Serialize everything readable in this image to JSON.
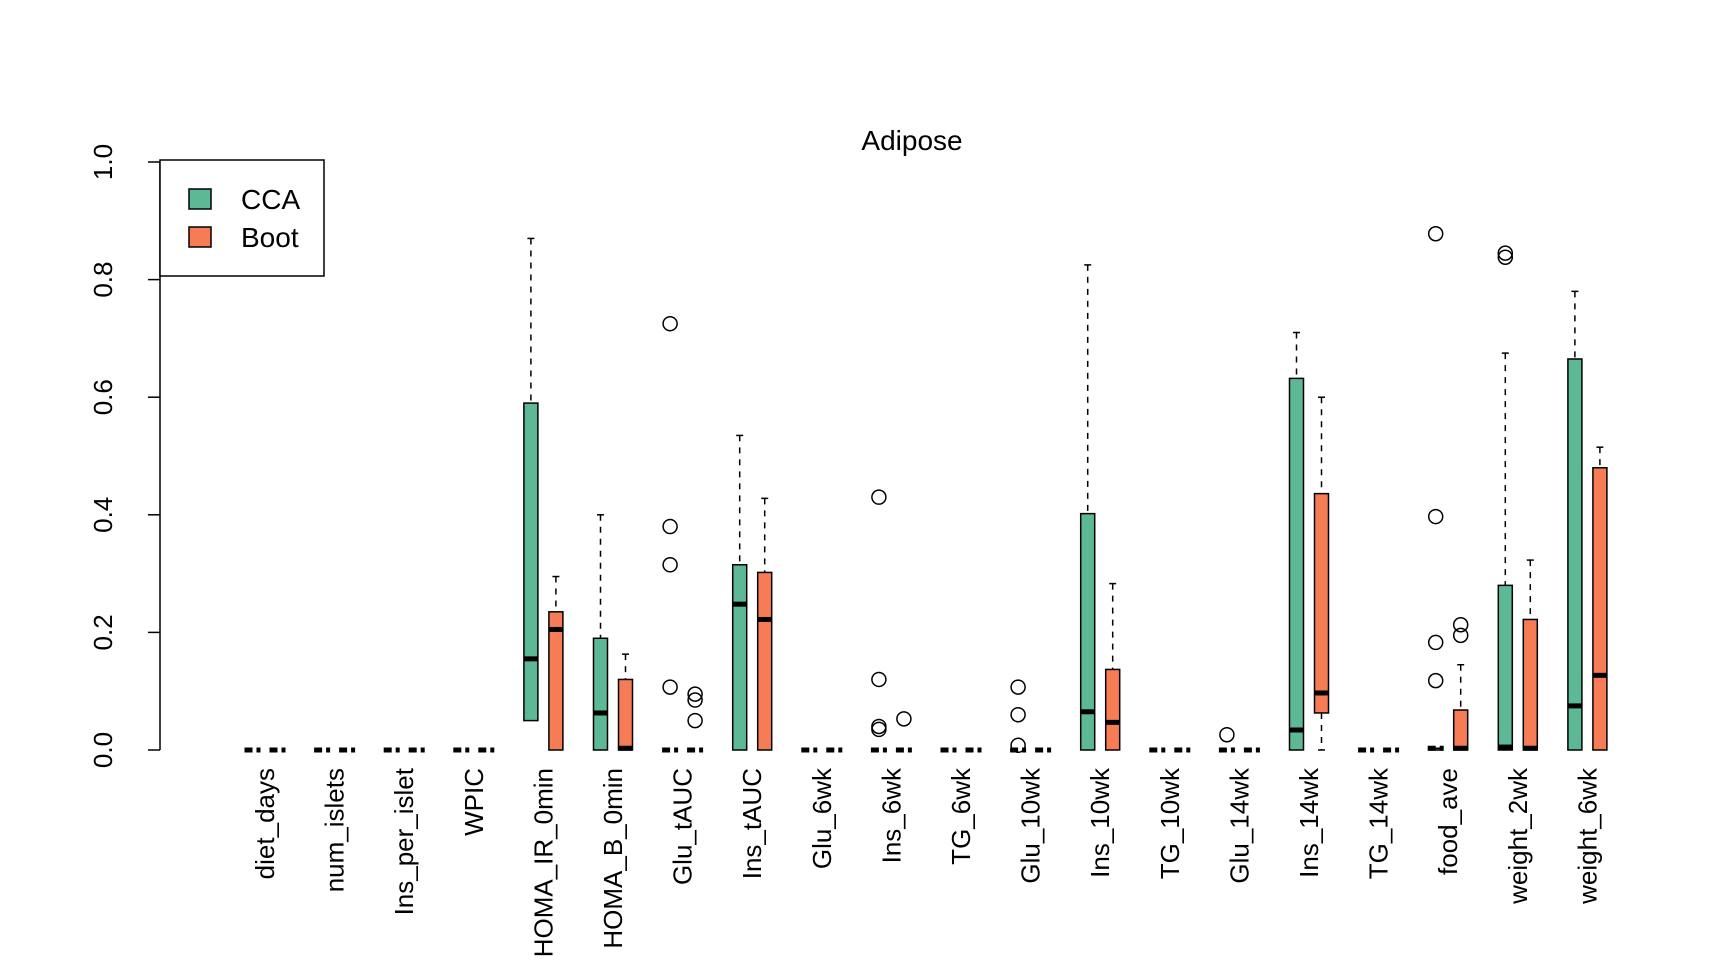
{
  "chart_data": {
    "type": "box",
    "title": "Adipose",
    "xlabel": "",
    "ylabel": "",
    "ylim": [
      0,
      1
    ],
    "yticks": [
      "0.0",
      "0.2",
      "0.4",
      "0.6",
      "0.8",
      "1.0"
    ],
    "legend": {
      "placement": "top-left",
      "entries": [
        {
          "label": "CCA",
          "color": "#5DB995"
        },
        {
          "label": "Boot",
          "color": "#F57C55"
        }
      ]
    },
    "categories": [
      "diet_days",
      "num_islets",
      "Ins_per_islet",
      "WPIC",
      "HOMA_IR_0min",
      "HOMA_B_0min",
      "Glu_tAUC",
      "Ins_tAUC",
      "Glu_6wk",
      "Ins_6wk",
      "TG_6wk",
      "Glu_10wk",
      "Ins_10wk",
      "TG_10wk",
      "Glu_14wk",
      "Ins_14wk",
      "TG_14wk",
      "food_ave",
      "weight_2wk",
      "weight_6wk"
    ],
    "series": [
      {
        "name": "CCA",
        "color": "#5DB995",
        "boxes": [
          {
            "min": 0,
            "q1": 0,
            "median": 0,
            "q3": 0,
            "max": 0,
            "outliers": []
          },
          {
            "min": 0,
            "q1": 0,
            "median": 0,
            "q3": 0,
            "max": 0,
            "outliers": []
          },
          {
            "min": 0,
            "q1": 0,
            "median": 0,
            "q3": 0,
            "max": 0,
            "outliers": []
          },
          {
            "min": 0,
            "q1": 0,
            "median": 0,
            "q3": 0,
            "max": 0,
            "outliers": []
          },
          {
            "min": 0.05,
            "q1": 0.05,
            "median": 0.155,
            "q3": 0.59,
            "max": 0.87,
            "outliers": []
          },
          {
            "min": 0,
            "q1": 0,
            "median": 0.063,
            "q3": 0.19,
            "max": 0.4,
            "outliers": []
          },
          {
            "min": 0,
            "q1": 0,
            "median": 0,
            "q3": 0,
            "max": 0,
            "outliers": [
              0.725,
              0.38,
              0.315,
              0.107
            ]
          },
          {
            "min": 0,
            "q1": 0,
            "median": 0.248,
            "q3": 0.315,
            "max": 0.535,
            "outliers": []
          },
          {
            "min": 0,
            "q1": 0,
            "median": 0,
            "q3": 0,
            "max": 0,
            "outliers": []
          },
          {
            "min": 0,
            "q1": 0,
            "median": 0,
            "q3": 0,
            "max": 0,
            "outliers": [
              0.43,
              0.12,
              0.04,
              0.035
            ]
          },
          {
            "min": 0,
            "q1": 0,
            "median": 0,
            "q3": 0,
            "max": 0,
            "outliers": []
          },
          {
            "min": 0,
            "q1": 0,
            "median": 0,
            "q3": 0,
            "max": 0,
            "outliers": [
              0.107,
              0.06,
              0.008
            ]
          },
          {
            "min": 0,
            "q1": 0,
            "median": 0.065,
            "q3": 0.402,
            "max": 0.825,
            "outliers": []
          },
          {
            "min": 0,
            "q1": 0,
            "median": 0,
            "q3": 0,
            "max": 0,
            "outliers": []
          },
          {
            "min": 0,
            "q1": 0,
            "median": 0,
            "q3": 0,
            "max": 0,
            "outliers": [
              0.026
            ]
          },
          {
            "min": 0,
            "q1": 0,
            "median": 0.034,
            "q3": 0.632,
            "max": 0.71,
            "outliers": []
          },
          {
            "min": 0,
            "q1": 0,
            "median": 0,
            "q3": 0,
            "max": 0,
            "outliers": []
          },
          {
            "min": 0,
            "q1": 0,
            "median": 0.003,
            "q3": 0.003,
            "max": 0.003,
            "outliers": [
              0.878,
              0.397,
              0.183,
              0.118
            ]
          },
          {
            "min": 0,
            "q1": 0,
            "median": 0.005,
            "q3": 0.28,
            "max": 0.675,
            "outliers": [
              0.845,
              0.838
            ]
          },
          {
            "min": 0,
            "q1": 0,
            "median": 0.075,
            "q3": 0.665,
            "max": 0.78,
            "outliers": []
          }
        ]
      },
      {
        "name": "Boot",
        "color": "#F57C55",
        "boxes": [
          {
            "min": 0,
            "q1": 0,
            "median": 0,
            "q3": 0,
            "max": 0,
            "outliers": []
          },
          {
            "min": 0,
            "q1": 0,
            "median": 0,
            "q3": 0,
            "max": 0,
            "outliers": []
          },
          {
            "min": 0,
            "q1": 0,
            "median": 0,
            "q3": 0,
            "max": 0,
            "outliers": []
          },
          {
            "min": 0,
            "q1": 0,
            "median": 0,
            "q3": 0,
            "max": 0,
            "outliers": []
          },
          {
            "min": 0,
            "q1": 0,
            "median": 0.205,
            "q3": 0.235,
            "max": 0.295,
            "outliers": []
          },
          {
            "min": 0,
            "q1": 0,
            "median": 0.003,
            "q3": 0.12,
            "max": 0.163,
            "outliers": []
          },
          {
            "min": 0,
            "q1": 0,
            "median": 0,
            "q3": 0,
            "max": 0,
            "outliers": [
              0.095,
              0.085,
              0.05
            ]
          },
          {
            "min": 0,
            "q1": 0,
            "median": 0.222,
            "q3": 0.302,
            "max": 0.428,
            "outliers": []
          },
          {
            "min": 0,
            "q1": 0,
            "median": 0,
            "q3": 0,
            "max": 0,
            "outliers": []
          },
          {
            "min": 0,
            "q1": 0,
            "median": 0,
            "q3": 0,
            "max": 0,
            "outliers": [
              0.053
            ]
          },
          {
            "min": 0,
            "q1": 0,
            "median": 0,
            "q3": 0,
            "max": 0,
            "outliers": []
          },
          {
            "min": 0,
            "q1": 0,
            "median": 0,
            "q3": 0,
            "max": 0,
            "outliers": []
          },
          {
            "min": 0,
            "q1": 0,
            "median": 0.047,
            "q3": 0.137,
            "max": 0.283,
            "outliers": []
          },
          {
            "min": 0,
            "q1": 0,
            "median": 0,
            "q3": 0,
            "max": 0,
            "outliers": []
          },
          {
            "min": 0,
            "q1": 0,
            "median": 0,
            "q3": 0,
            "max": 0,
            "outliers": []
          },
          {
            "min": 0,
            "q1": 0.063,
            "median": 0.097,
            "q3": 0.436,
            "max": 0.6,
            "outliers": []
          },
          {
            "min": 0,
            "q1": 0,
            "median": 0,
            "q3": 0,
            "max": 0,
            "outliers": []
          },
          {
            "min": 0,
            "q1": 0,
            "median": 0.003,
            "q3": 0.068,
            "max": 0.145,
            "outliers": [
              0.213,
              0.195
            ]
          },
          {
            "min": 0,
            "q1": 0,
            "median": 0.003,
            "q3": 0.222,
            "max": 0.323,
            "outliers": []
          },
          {
            "min": 0,
            "q1": 0,
            "median": 0.127,
            "q3": 0.48,
            "max": 0.515,
            "outliers": []
          }
        ]
      }
    ]
  }
}
